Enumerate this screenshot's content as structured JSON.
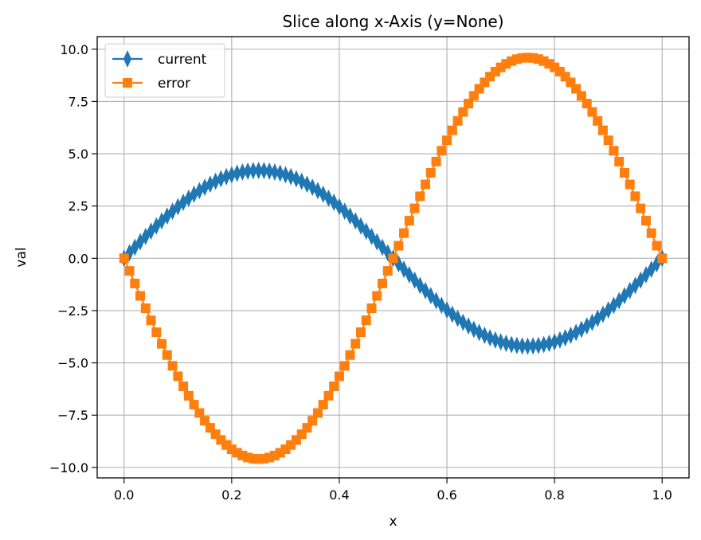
{
  "chart_data": {
    "type": "line",
    "title": "Slice along x-Axis (y=None)",
    "xlabel": "x",
    "ylabel": "val",
    "xlim": [
      -0.05,
      1.05
    ],
    "ylim": [
      -10.5,
      10.6
    ],
    "xticks": [
      0.0,
      0.2,
      0.4,
      0.6,
      0.8,
      1.0
    ],
    "xtick_labels": [
      "0.0",
      "0.2",
      "0.4",
      "0.6",
      "0.8",
      "1.0"
    ],
    "yticks": [
      -10.0,
      -7.5,
      -5.0,
      -2.5,
      0.0,
      2.5,
      5.0,
      7.5,
      10.0
    ],
    "ytick_labels": [
      "−10.0",
      "−7.5",
      "−5.0",
      "−2.5",
      "0.0",
      "2.5",
      "5.0",
      "7.5",
      "10.0"
    ],
    "grid": true,
    "legend_position": "top-left",
    "series": [
      {
        "name": "current",
        "color": "#1f77b4",
        "marker": "thin_diamond",
        "amplitude": 4.2,
        "phase_sign": 1,
        "num_points": 101,
        "x_start": 0.0,
        "x_end": 1.0
      },
      {
        "name": "error",
        "color": "#ff7f0e",
        "marker": "square",
        "amplitude": 9.6,
        "phase_sign": -1,
        "num_points": 101,
        "x_start": 0.0,
        "x_end": 1.0
      }
    ]
  }
}
